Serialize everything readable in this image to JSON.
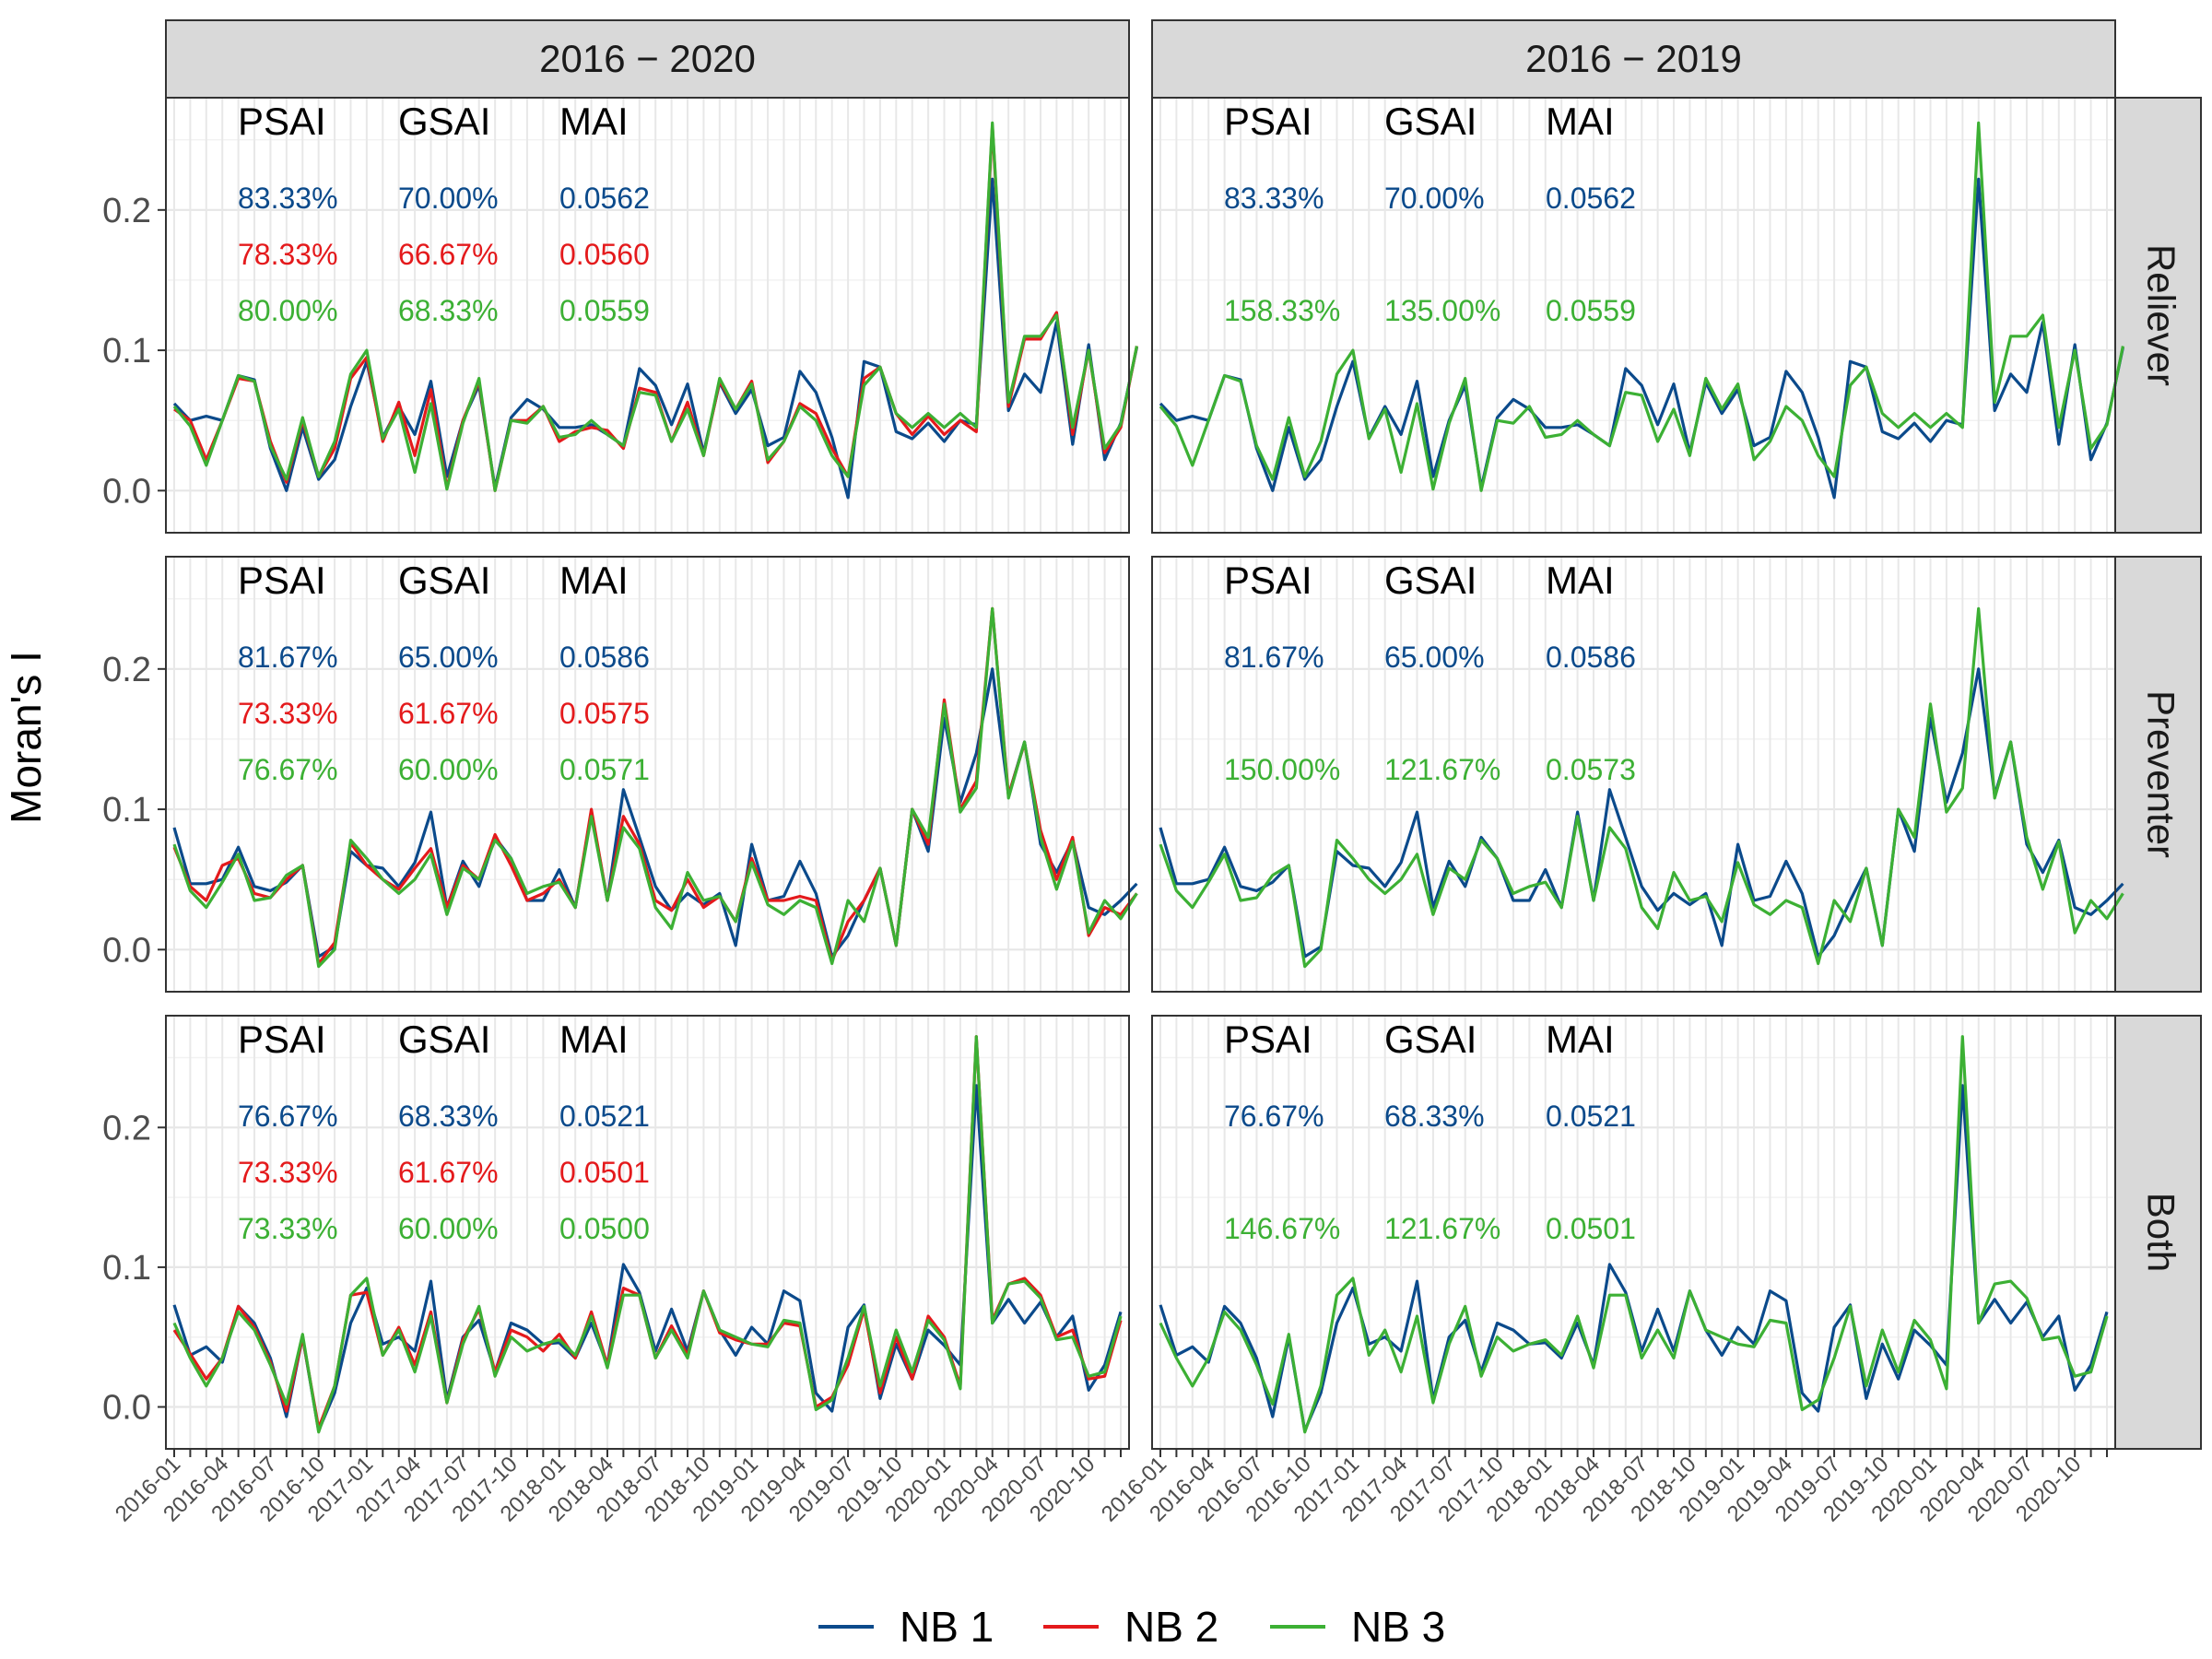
{
  "chart_data": {
    "type": "line",
    "ylabel": "Moran's I",
    "xlabel": "",
    "columns": [
      "2016 − 2020",
      "2016 − 2019"
    ],
    "rows": [
      "Reliever",
      "Preventer",
      "Both"
    ],
    "ylim": [
      -0.03,
      0.28
    ],
    "yticks": [
      0.0,
      0.1,
      0.2
    ],
    "ytick_labels": [
      "0.0",
      "0.1",
      "0.2"
    ],
    "x_tick_labels": [
      "2016-01",
      "2016-04",
      "2016-07",
      "2016-10",
      "2017-01",
      "2017-04",
      "2017-07",
      "2017-10",
      "2018-01",
      "2018-04",
      "2018-07",
      "2018-10",
      "2019-01",
      "2019-04",
      "2019-07",
      "2019-10",
      "2020-01",
      "2020-04",
      "2020-07",
      "2020-10"
    ],
    "x_start": "2016-01",
    "grid": true,
    "legend": {
      "position": "bottom",
      "entries": [
        {
          "name": "NB 1",
          "color": "#0b4a8b"
        },
        {
          "name": "NB 2",
          "color": "#e41a1c"
        },
        {
          "name": "NB 3",
          "color": "#3cb034"
        }
      ]
    },
    "stat_headers": [
      "PSAI",
      "GSAI",
      "MAI"
    ],
    "annotations": {
      "Reliever": {
        "2016 − 2020": [
          [
            "83.33%",
            "70.00%",
            "0.0562"
          ],
          [
            "78.33%",
            "66.67%",
            "0.0560"
          ],
          [
            "80.00%",
            "68.33%",
            "0.0559"
          ]
        ],
        "2016 − 2019": [
          [
            "83.33%",
            "70.00%",
            "0.0562"
          ],
          null,
          [
            "158.33%",
            "135.00%",
            "0.0559"
          ]
        ]
      },
      "Preventer": {
        "2016 − 2020": [
          [
            "81.67%",
            "65.00%",
            "0.0586"
          ],
          [
            "73.33%",
            "61.67%",
            "0.0575"
          ],
          [
            "76.67%",
            "60.00%",
            "0.0571"
          ]
        ],
        "2016 − 2019": [
          [
            "81.67%",
            "65.00%",
            "0.0586"
          ],
          null,
          [
            "150.00%",
            "121.67%",
            "0.0573"
          ]
        ]
      },
      "Both": {
        "2016 − 2020": [
          [
            "76.67%",
            "68.33%",
            "0.0521"
          ],
          [
            "73.33%",
            "61.67%",
            "0.0501"
          ],
          [
            "73.33%",
            "60.00%",
            "0.0500"
          ]
        ],
        "2016 − 2019": [
          [
            "76.67%",
            "68.33%",
            "0.0521"
          ],
          null,
          [
            "146.67%",
            "121.67%",
            "0.0501"
          ]
        ]
      }
    },
    "panel_series": {
      "2016 − 2020": [
        "NB 1",
        "NB 2",
        "NB 3"
      ],
      "2016 − 2019": [
        "NB 1",
        "NB 3"
      ]
    },
    "series": {
      "Reliever": {
        "NB 1": [
          0.062,
          0.05,
          0.053,
          0.05,
          0.082,
          0.079,
          0.03,
          0.0,
          0.045,
          0.008,
          0.022,
          0.06,
          0.092,
          0.038,
          0.06,
          0.04,
          0.078,
          0.01,
          0.05,
          0.075,
          0.002,
          0.052,
          0.065,
          0.058,
          0.045,
          0.045,
          0.047,
          0.04,
          0.032,
          0.087,
          0.075,
          0.047,
          0.076,
          0.027,
          0.077,
          0.055,
          0.072,
          0.032,
          0.038,
          0.085,
          0.07,
          0.038,
          -0.005,
          0.092,
          0.088,
          0.042,
          0.037,
          0.048,
          0.035,
          0.05,
          0.047,
          0.222,
          0.057,
          0.083,
          0.07,
          0.12,
          0.033,
          0.104,
          0.022,
          0.048,
          0.102
        ],
        "NB 2": [
          0.058,
          0.05,
          0.022,
          0.05,
          0.08,
          0.078,
          0.035,
          0.006,
          0.05,
          0.01,
          0.03,
          0.08,
          0.095,
          0.035,
          0.063,
          0.025,
          0.072,
          0.002,
          0.05,
          0.078,
          0.0,
          0.05,
          0.05,
          0.06,
          0.035,
          0.042,
          0.045,
          0.043,
          0.03,
          0.073,
          0.07,
          0.035,
          0.063,
          0.025,
          0.078,
          0.058,
          0.078,
          0.02,
          0.035,
          0.062,
          0.055,
          0.03,
          0.01,
          0.08,
          0.088,
          0.055,
          0.04,
          0.053,
          0.04,
          0.05,
          0.042,
          0.26,
          0.06,
          0.108,
          0.108,
          0.127,
          0.04,
          0.1,
          0.027,
          0.045,
          0.103
        ],
        "NB 3": [
          0.06,
          0.046,
          0.018,
          0.05,
          0.082,
          0.078,
          0.032,
          0.008,
          0.052,
          0.01,
          0.035,
          0.083,
          0.1,
          0.037,
          0.058,
          0.013,
          0.062,
          0.001,
          0.048,
          0.08,
          0.0,
          0.05,
          0.048,
          0.06,
          0.038,
          0.04,
          0.05,
          0.04,
          0.032,
          0.07,
          0.068,
          0.035,
          0.058,
          0.025,
          0.08,
          0.058,
          0.076,
          0.022,
          0.035,
          0.06,
          0.05,
          0.025,
          0.01,
          0.075,
          0.088,
          0.055,
          0.045,
          0.055,
          0.045,
          0.055,
          0.045,
          0.262,
          0.063,
          0.11,
          0.11,
          0.125,
          0.045,
          0.1,
          0.03,
          0.047,
          0.103
        ]
      },
      "Preventer": {
        "NB 1": [
          0.087,
          0.047,
          0.047,
          0.05,
          0.073,
          0.045,
          0.042,
          0.048,
          0.06,
          -0.005,
          0.002,
          0.07,
          0.06,
          0.058,
          0.045,
          0.062,
          0.098,
          0.03,
          0.063,
          0.045,
          0.08,
          0.065,
          0.035,
          0.035,
          0.057,
          0.03,
          0.098,
          0.035,
          0.114,
          0.08,
          0.045,
          0.028,
          0.04,
          0.032,
          0.04,
          0.003,
          0.075,
          0.035,
          0.038,
          0.063,
          0.04,
          -0.005,
          0.01,
          0.035,
          0.058,
          0.003,
          0.1,
          0.07,
          0.165,
          0.105,
          0.14,
          0.2,
          0.11,
          0.148,
          0.075,
          0.055,
          0.078,
          0.03,
          0.025,
          0.035,
          0.047
        ],
        "NB 2": [
          0.073,
          0.045,
          0.035,
          0.06,
          0.065,
          0.04,
          0.037,
          0.05,
          0.06,
          -0.01,
          0.005,
          0.076,
          0.06,
          0.05,
          0.043,
          0.058,
          0.072,
          0.03,
          0.06,
          0.05,
          0.082,
          0.06,
          0.035,
          0.04,
          0.05,
          0.03,
          0.1,
          0.035,
          0.095,
          0.075,
          0.035,
          0.028,
          0.05,
          0.03,
          0.038,
          0.02,
          0.065,
          0.035,
          0.035,
          0.038,
          0.035,
          -0.008,
          0.02,
          0.035,
          0.058,
          0.003,
          0.1,
          0.075,
          0.178,
          0.1,
          0.12,
          0.243,
          0.11,
          0.147,
          0.085,
          0.05,
          0.08,
          0.01,
          0.03,
          0.025,
          0.04
        ],
        "NB 3": [
          0.075,
          0.042,
          0.03,
          0.048,
          0.068,
          0.035,
          0.037,
          0.053,
          0.06,
          -0.012,
          0.0,
          0.078,
          0.065,
          0.05,
          0.04,
          0.05,
          0.068,
          0.025,
          0.058,
          0.05,
          0.078,
          0.065,
          0.04,
          0.045,
          0.048,
          0.03,
          0.095,
          0.035,
          0.087,
          0.072,
          0.03,
          0.015,
          0.055,
          0.035,
          0.038,
          0.02,
          0.062,
          0.032,
          0.025,
          0.035,
          0.03,
          -0.01,
          0.035,
          0.02,
          0.058,
          0.003,
          0.1,
          0.08,
          0.175,
          0.098,
          0.115,
          0.243,
          0.108,
          0.148,
          0.08,
          0.043,
          0.077,
          0.012,
          0.035,
          0.022,
          0.04
        ]
      },
      "Both": {
        "NB 1": [
          0.073,
          0.037,
          0.043,
          0.032,
          0.072,
          0.06,
          0.035,
          -0.007,
          0.05,
          -0.017,
          0.01,
          0.06,
          0.085,
          0.045,
          0.05,
          0.04,
          0.09,
          0.005,
          0.05,
          0.062,
          0.025,
          0.06,
          0.055,
          0.045,
          0.046,
          0.035,
          0.06,
          0.03,
          0.102,
          0.082,
          0.04,
          0.07,
          0.04,
          0.083,
          0.055,
          0.037,
          0.057,
          0.045,
          0.083,
          0.076,
          0.01,
          -0.003,
          0.057,
          0.073,
          0.006,
          0.045,
          0.02,
          0.055,
          0.044,
          0.03,
          0.23,
          0.06,
          0.077,
          0.06,
          0.075,
          0.05,
          0.065,
          0.012,
          0.03,
          0.068
        ],
        "NB 2": [
          0.055,
          0.038,
          0.02,
          0.035,
          0.072,
          0.057,
          0.032,
          -0.003,
          0.05,
          -0.015,
          0.015,
          0.08,
          0.082,
          0.037,
          0.057,
          0.03,
          0.068,
          0.003,
          0.048,
          0.07,
          0.025,
          0.055,
          0.05,
          0.04,
          0.052,
          0.035,
          0.068,
          0.03,
          0.085,
          0.08,
          0.035,
          0.058,
          0.037,
          0.083,
          0.053,
          0.048,
          0.045,
          0.045,
          0.06,
          0.058,
          0.0,
          0.007,
          0.03,
          0.07,
          0.01,
          0.05,
          0.02,
          0.065,
          0.05,
          0.015,
          0.265,
          0.062,
          0.088,
          0.092,
          0.08,
          0.05,
          0.055,
          0.02,
          0.022,
          0.062
        ],
        "NB 3": [
          0.06,
          0.035,
          0.015,
          0.035,
          0.068,
          0.055,
          0.03,
          0.002,
          0.052,
          -0.018,
          0.015,
          0.08,
          0.092,
          0.037,
          0.055,
          0.025,
          0.065,
          0.003,
          0.045,
          0.072,
          0.022,
          0.05,
          0.04,
          0.045,
          0.048,
          0.037,
          0.065,
          0.028,
          0.08,
          0.08,
          0.035,
          0.055,
          0.035,
          0.083,
          0.055,
          0.05,
          0.045,
          0.043,
          0.062,
          0.06,
          -0.002,
          0.005,
          0.035,
          0.072,
          0.015,
          0.055,
          0.025,
          0.062,
          0.048,
          0.013,
          0.265,
          0.06,
          0.088,
          0.09,
          0.078,
          0.048,
          0.05,
          0.022,
          0.025,
          0.065
        ]
      }
    }
  }
}
